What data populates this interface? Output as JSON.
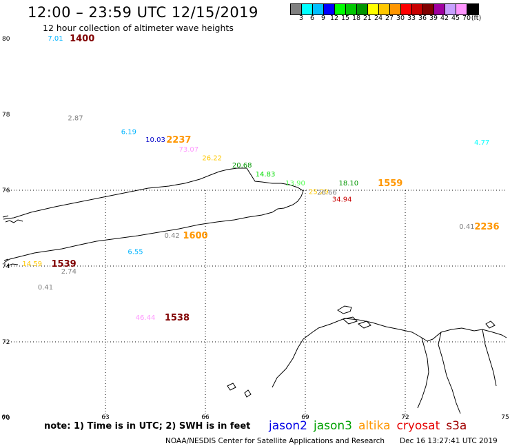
{
  "header": {
    "title": "12:00 – 23:59 UTC 12/15/2019",
    "subtitle": "12 hour collection of altimeter wave heights"
  },
  "legend": {
    "unit_label": "(ft)",
    "colors": [
      "#808080",
      "#00ffff",
      "#00bfff",
      "#0000ff",
      "#00ff00",
      "#00c800",
      "#009600",
      "#ffff00",
      "#ffc800",
      "#ff9600",
      "#ff0000",
      "#c80000",
      "#800000",
      "#a000a0",
      "#c8a0ff",
      "#ff96ff",
      "#000000"
    ],
    "ticks": [
      "3",
      "6",
      "9",
      "12",
      "15",
      "18",
      "21",
      "24",
      "27",
      "30",
      "33",
      "36",
      "39",
      "42",
      "45",
      "70"
    ]
  },
  "map": {
    "lat_labels": [
      {
        "text": "80",
        "lat": 80
      },
      {
        "text": "78",
        "lat": 78
      },
      {
        "text": "76",
        "lat": 76
      },
      {
        "text": "74",
        "lat": 74
      },
      {
        "text": "72",
        "lat": 72
      },
      {
        "text": "70",
        "lat": 70
      }
    ],
    "lon_labels": [
      {
        "text": "60",
        "lon": 60
      },
      {
        "text": "63",
        "lon": 63
      },
      {
        "text": "66",
        "lon": 66
      },
      {
        "text": "69",
        "lon": 69
      },
      {
        "text": "72",
        "lon": 72
      },
      {
        "text": "75",
        "lon": 75
      }
    ],
    "observations": [
      {
        "text": "7.01",
        "color": "#00b4ff",
        "lon": 61.5,
        "lat": 79.95
      },
      {
        "text": "2.87",
        "color": "#808080",
        "lon": 62.1,
        "lat": 77.85
      },
      {
        "text": "6.19",
        "color": "#00b4ff",
        "lon": 63.7,
        "lat": 77.48
      },
      {
        "text": "10.03",
        "color": "#0000c8",
        "lon": 64.5,
        "lat": 77.27
      },
      {
        "text": "73.07",
        "color": "#ff96ff",
        "lon": 65.5,
        "lat": 77.02
      },
      {
        "text": "26.22",
        "color": "#ffc800",
        "lon": 66.2,
        "lat": 76.79
      },
      {
        "text": "20.68",
        "color": "#009600",
        "lon": 67.1,
        "lat": 76.6
      },
      {
        "text": "14.83",
        "color": "#00dc00",
        "lon": 67.8,
        "lat": 76.36
      },
      {
        "text": "13.90",
        "color": "#50ff50",
        "lon": 68.7,
        "lat": 76.13
      },
      {
        "text": "25.29",
        "color": "#ffc800",
        "lon": 69.4,
        "lat": 75.9
      },
      {
        "text": "26.66",
        "color": "#808080",
        "lon": 69.65,
        "lat": 75.88
      },
      {
        "text": "18.10",
        "color": "#009600",
        "lon": 70.3,
        "lat": 76.13
      },
      {
        "text": "34.94",
        "color": "#c80000",
        "lon": 70.1,
        "lat": 75.7
      },
      {
        "text": "4.77",
        "color": "#00ffff",
        "lon": 74.3,
        "lat": 77.2
      },
      {
        "text": "0.41",
        "color": "#808080",
        "lon": 73.85,
        "lat": 74.98
      },
      {
        "text": "0.42",
        "color": "#808080",
        "lon": 65.0,
        "lat": 74.75
      },
      {
        "text": "6.55",
        "color": "#00b4ff",
        "lon": 63.9,
        "lat": 74.32
      },
      {
        "text": "14.59",
        "color": "#ffc800",
        "lon": 60.8,
        "lat": 74.0
      },
      {
        "text": "2.74",
        "color": "#808080",
        "lon": 61.9,
        "lat": 73.8
      },
      {
        "text": "0.41",
        "color": "#808080",
        "lon": 61.2,
        "lat": 73.38
      },
      {
        "text": "46.44",
        "color": "#ff96ff",
        "lon": 64.2,
        "lat": 72.58
      }
    ],
    "times": [
      {
        "text": "1400",
        "color": "#800000",
        "lon": 62.3,
        "lat": 79.95
      },
      {
        "text": "2237",
        "color": "#ff9600",
        "lon": 65.2,
        "lat": 77.27
      },
      {
        "text": "1559",
        "color": "#ff9600",
        "lon": 71.55,
        "lat": 76.13
      },
      {
        "text": "2236",
        "color": "#ff9600",
        "lon": 74.45,
        "lat": 74.98
      },
      {
        "text": "1600",
        "color": "#ff9600",
        "lon": 65.7,
        "lat": 74.75
      },
      {
        "text": "1539",
        "color": "#800000",
        "lon": 61.75,
        "lat": 74.0
      },
      {
        "text": "1538",
        "color": "#800000",
        "lon": 65.15,
        "lat": 72.58
      }
    ]
  },
  "footer": {
    "note": "note:  1) Time is in UTC;  2) SWH is in feet",
    "satellites": [
      {
        "name": "jason2",
        "color": "#0000e6"
      },
      {
        "name": "jason3",
        "color": "#00a000"
      },
      {
        "name": "altika",
        "color": "#ff9600"
      },
      {
        "name": "cryosat",
        "color": "#e60000"
      },
      {
        "name": "s3a",
        "color": "#a00000"
      }
    ],
    "credit": "NOAA/NESDIS Center for Satellite Applications and Research",
    "date": "Dec 16 13:27:41 UTC 2019"
  }
}
